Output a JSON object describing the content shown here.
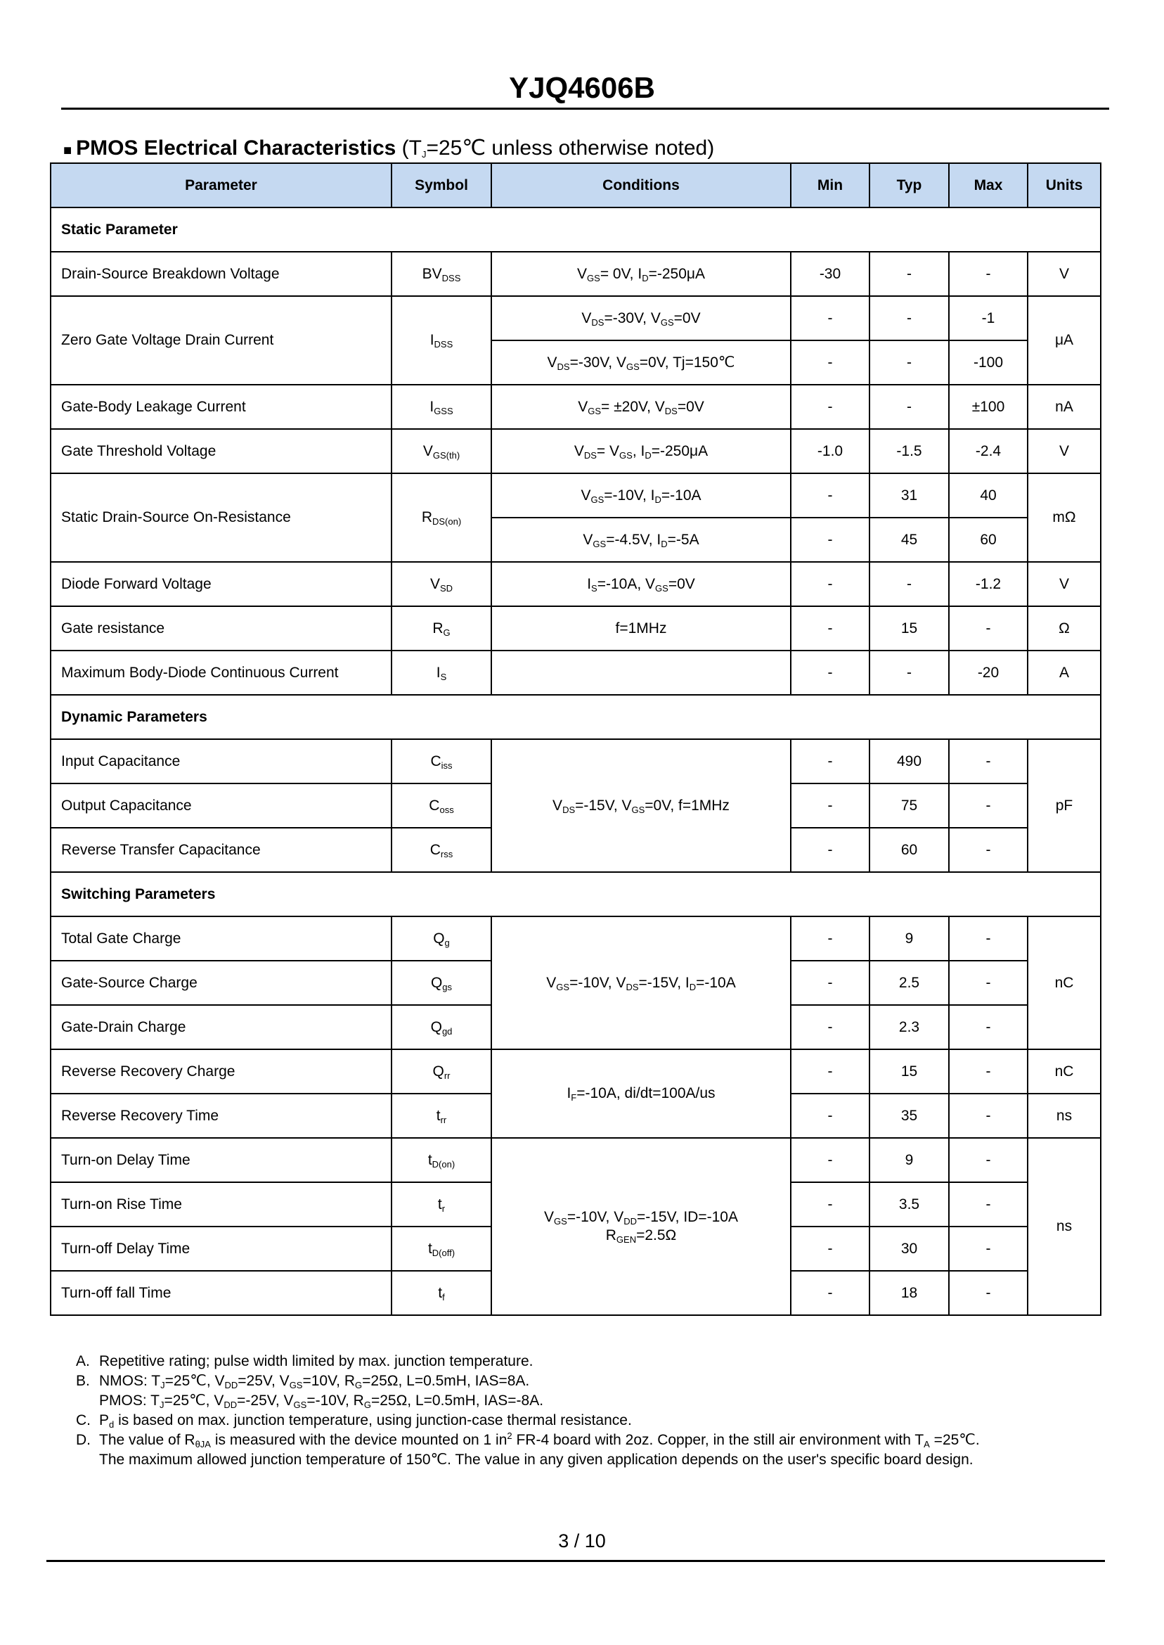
{
  "title": "YJQ4606B",
  "section": {
    "bullet": "■",
    "heading_bold": "PMOS Electrical Characteristics",
    "heading_rest": " (T_{J}=25℃ unless otherwise noted)"
  },
  "table": {
    "headers": [
      "Parameter",
      "Symbol",
      "Conditions",
      "Min",
      "Typ",
      "Max",
      "Units"
    ],
    "rows": [
      {
        "section": "Static Parameter"
      },
      {
        "param": "Drain-Source Breakdown Voltage",
        "symbol": "BV_{DSS}",
        "cond": "V_{GS}= 0V, I_{D}=-250μA",
        "min": "-30",
        "typ": "-",
        "max": "-",
        "units": "V"
      },
      {
        "param": "Zero Gate Voltage Drain Current",
        "symbol": "I_{DSS}",
        "cond": "V_{DS}=-30V, V_{GS}=0V",
        "min": "-",
        "typ": "-",
        "max": "-1",
        "units": "μA",
        "span": {
          "param": 2,
          "symbol": 2,
          "units": 2
        }
      },
      {
        "cond": "V_{DS}=-30V, V_{GS}=0V, Tj=150℃",
        "min": "-",
        "typ": "-",
        "max": "-100"
      },
      {
        "param": "Gate-Body Leakage Current",
        "symbol": "I_{GSS}",
        "cond": "V_{GS}= ±20V, V_{DS}=0V",
        "min": "-",
        "typ": "-",
        "max": "±100",
        "units": "nA"
      },
      {
        "param": "Gate Threshold Voltage",
        "symbol": "V_{GS(th)}",
        "cond": "V_{DS}= V_{GS}, I_{D}=-250μA",
        "min": "-1.0",
        "typ": "-1.5",
        "max": "-2.4",
        "units": "V"
      },
      {
        "param": "Static Drain-Source On-Resistance",
        "symbol": "R_{DS(on)}",
        "cond": "V_{GS}=-10V, I_{D}=-10A",
        "min": "-",
        "typ": "31",
        "max": "40",
        "units": "mΩ",
        "span": {
          "param": 2,
          "symbol": 2,
          "units": 2
        }
      },
      {
        "cond": "V_{GS}=-4.5V, I_{D}=-5A",
        "min": "-",
        "typ": "45",
        "max": "60"
      },
      {
        "param": "Diode Forward Voltage",
        "symbol": "V_{SD}",
        "cond": "I_{S}=-10A, V_{GS}=0V",
        "min": "-",
        "typ": "-",
        "max": "-1.2",
        "units": "V"
      },
      {
        "param": "Gate resistance",
        "symbol": "R_{G}",
        "cond": "f=1MHz",
        "min": "-",
        "typ": "15",
        "max": "-",
        "units": "Ω"
      },
      {
        "param": "Maximum Body-Diode Continuous Current",
        "symbol": "I_{S}",
        "cond": "",
        "min": "-",
        "typ": "-",
        "max": "-20",
        "units": "A"
      },
      {
        "section": "Dynamic Parameters"
      },
      {
        "param": "Input Capacitance",
        "symbol": "C_{iss}",
        "cond": "V_{DS}=-15V, V_{GS}=0V, f=1MHz",
        "min": "-",
        "typ": "490",
        "max": "-",
        "units": "pF",
        "span": {
          "cond": 3,
          "units": 3
        }
      },
      {
        "param": "Output Capacitance",
        "symbol": "C_{oss}",
        "min": "-",
        "typ": "75",
        "max": "-"
      },
      {
        "param": "Reverse Transfer Capacitance",
        "symbol": "C_{rss}",
        "min": "-",
        "typ": "60",
        "max": "-"
      },
      {
        "section": "Switching Parameters"
      },
      {
        "param": "Total Gate Charge",
        "symbol": "Q_{g}",
        "cond": "V_{GS}=-10V, V_{DS}=-15V, I_{D}=-10A",
        "min": "-",
        "typ": "9",
        "max": "-",
        "units": "nC",
        "span": {
          "cond": 3,
          "units": 3
        }
      },
      {
        "param": "Gate-Source Charge",
        "symbol": "Q_{gs}",
        "min": "-",
        "typ": "2.5",
        "max": "-"
      },
      {
        "param": "Gate-Drain Charge",
        "symbol": "Q_{gd}",
        "min": "-",
        "typ": "2.3",
        "max": "-"
      },
      {
        "param": "Reverse Recovery Charge",
        "symbol": "Q_{rr}",
        "cond": "I_{F}=-10A, di/dt=100A/us",
        "min": "-",
        "typ": "15",
        "max": "-",
        "units": "nC",
        "span": {
          "cond": 2
        }
      },
      {
        "param": "Reverse Recovery Time",
        "symbol": "t_{rr}",
        "min": "-",
        "typ": "35",
        "max": "-",
        "units": "ns"
      },
      {
        "param": "Turn-on Delay Time",
        "symbol": "t_{D(on)}",
        "cond": "V_{GS}=-10V, V_{DD}=-15V, ID=-10A\nR_{GEN}=2.5Ω",
        "min": "-",
        "typ": "9",
        "max": "-",
        "units": "ns",
        "span": {
          "cond": 4,
          "units": 4
        }
      },
      {
        "param": "Turn-on Rise Time",
        "symbol": "t_{r}",
        "min": "-",
        "typ": "3.5",
        "max": "-"
      },
      {
        "param": "Turn-off Delay Time",
        "symbol": "t_{D(off)}",
        "min": "-",
        "typ": "30",
        "max": "-"
      },
      {
        "param": "Turn-off fall Time",
        "symbol": "t_{f}",
        "min": "-",
        "typ": "18",
        "max": "-"
      }
    ]
  },
  "notes": [
    {
      "label": "A.",
      "text": "Repetitive rating; pulse width limited by max. junction temperature."
    },
    {
      "label": "B.",
      "text": "NMOS: T_{J}=25℃, V_{DD}=25V, V_{GS}=10V, R_{G}=25Ω, L=0.5mH, IAS=8A."
    },
    {
      "label": "",
      "text": "PMOS: T_{J}=25℃, V_{DD}=-25V, V_{GS}=-10V, R_{G}=25Ω, L=0.5mH, IAS=-8A."
    },
    {
      "label": "C.",
      "text": "P_{d} is based on max. junction temperature, using junction-case thermal resistance."
    },
    {
      "label": "D.",
      "text": "The value of R_{θJA} is measured with the device mounted on 1 in^{2} FR-4 board with 2oz. Copper, in the still air environment with T_{A} =25℃."
    },
    {
      "label": "",
      "text": "The maximum allowed junction temperature of 150℃. The value in any given application depends on the user's specific board design."
    }
  ],
  "page_number": "3 / 10",
  "colors": {
    "header_bg": "#c5d9f1"
  }
}
